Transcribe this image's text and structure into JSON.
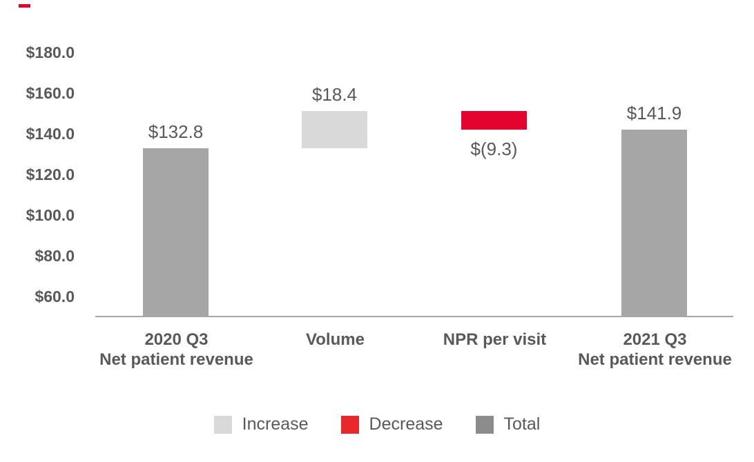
{
  "style": {
    "text_color": "#595959",
    "axis_line_color": "#a6a6a6",
    "background_color": "#ffffff"
  },
  "decor": {
    "accent_dash_color": "#e4032e"
  },
  "chart_data": {
    "type": "bar",
    "variant": "waterfall",
    "categories": [
      "2020 Q3 Net patient revenue",
      "Volume",
      "NPR per visit",
      "2021 Q3 Net patient revenue"
    ],
    "bars": [
      {
        "name": "2020-q3-net-patient-revenue",
        "category_lines": [
          "2020 Q3",
          "Net patient revenue"
        ],
        "role": "total",
        "start": 0,
        "end": 132.8,
        "value": 132.8,
        "label": "$132.8",
        "label_position": "above"
      },
      {
        "name": "volume",
        "category_lines": [
          "Volume"
        ],
        "role": "increase",
        "start": 132.8,
        "end": 151.2,
        "value": 18.4,
        "label": "$18.4",
        "label_position": "above"
      },
      {
        "name": "npr-per-visit",
        "category_lines": [
          "NPR per visit"
        ],
        "role": "decrease",
        "start": 151.2,
        "end": 141.9,
        "value": -9.3,
        "label": "$(9.3)",
        "label_position": "below"
      },
      {
        "name": "2021-q3-net-patient-revenue",
        "category_lines": [
          "2021 Q3",
          "Net patient revenue"
        ],
        "role": "total",
        "start": 0,
        "end": 141.9,
        "value": 141.9,
        "label": "$141.9",
        "label_position": "above"
      }
    ],
    "y_axis": {
      "tick_labels": [
        "$180.0",
        "$160.0",
        "$140.0",
        "$120.0",
        "$100.0",
        "$80.0",
        "$60.0"
      ],
      "tick_values": [
        180,
        160,
        140,
        120,
        100,
        80,
        60
      ],
      "range_min": 50,
      "range_max": 195,
      "grid": false
    },
    "colors": {
      "total": "#a6a6a6",
      "increase": "#d9d9d9",
      "decrease": "#e4032e"
    },
    "legend": {
      "position": "bottom",
      "items": [
        {
          "name": "increase",
          "label": "Increase",
          "color": "#d9d9d9"
        },
        {
          "name": "decrease",
          "label": "Decrease",
          "color": "#e8282b"
        },
        {
          "name": "total",
          "label": "Total",
          "color": "#8c8c8c"
        }
      ]
    }
  }
}
